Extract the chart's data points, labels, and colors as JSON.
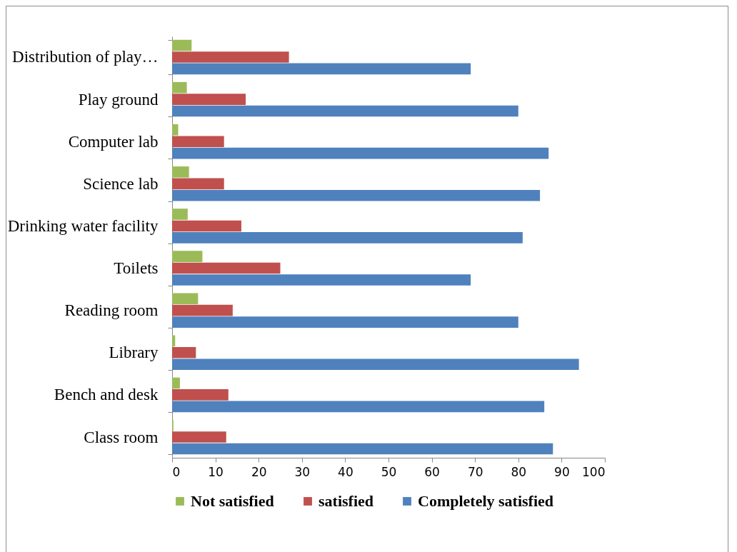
{
  "chart_data": {
    "type": "bar",
    "orientation": "horizontal",
    "categories": [
      "Distribution of play…",
      "Play ground",
      "Computer lab",
      "Science lab",
      "Drinking water facility",
      "Toilets",
      "Reading room",
      "Library",
      "Bench and desk",
      "Class room"
    ],
    "series": [
      {
        "name": "Not satisfied",
        "color": "#9bbb59",
        "values": [
          4.5,
          3.4,
          1.4,
          3.9,
          3.6,
          7,
          6,
          0.7,
          1.8,
          0.3
        ]
      },
      {
        "name": "satisfied",
        "color": "#c0504d",
        "values": [
          27,
          17,
          12,
          12,
          16,
          25,
          14,
          5.5,
          13,
          12.5
        ]
      },
      {
        "name": "Completely satisfied",
        "color": "#4f81bd",
        "values": [
          69,
          80,
          87,
          85,
          81,
          69,
          80,
          94,
          86,
          88
        ]
      }
    ],
    "xlim": [
      0,
      100
    ],
    "xticks": [
      0,
      10,
      20,
      30,
      40,
      50,
      60,
      70,
      80,
      90,
      100
    ],
    "grid": false,
    "legend": "bottom"
  }
}
